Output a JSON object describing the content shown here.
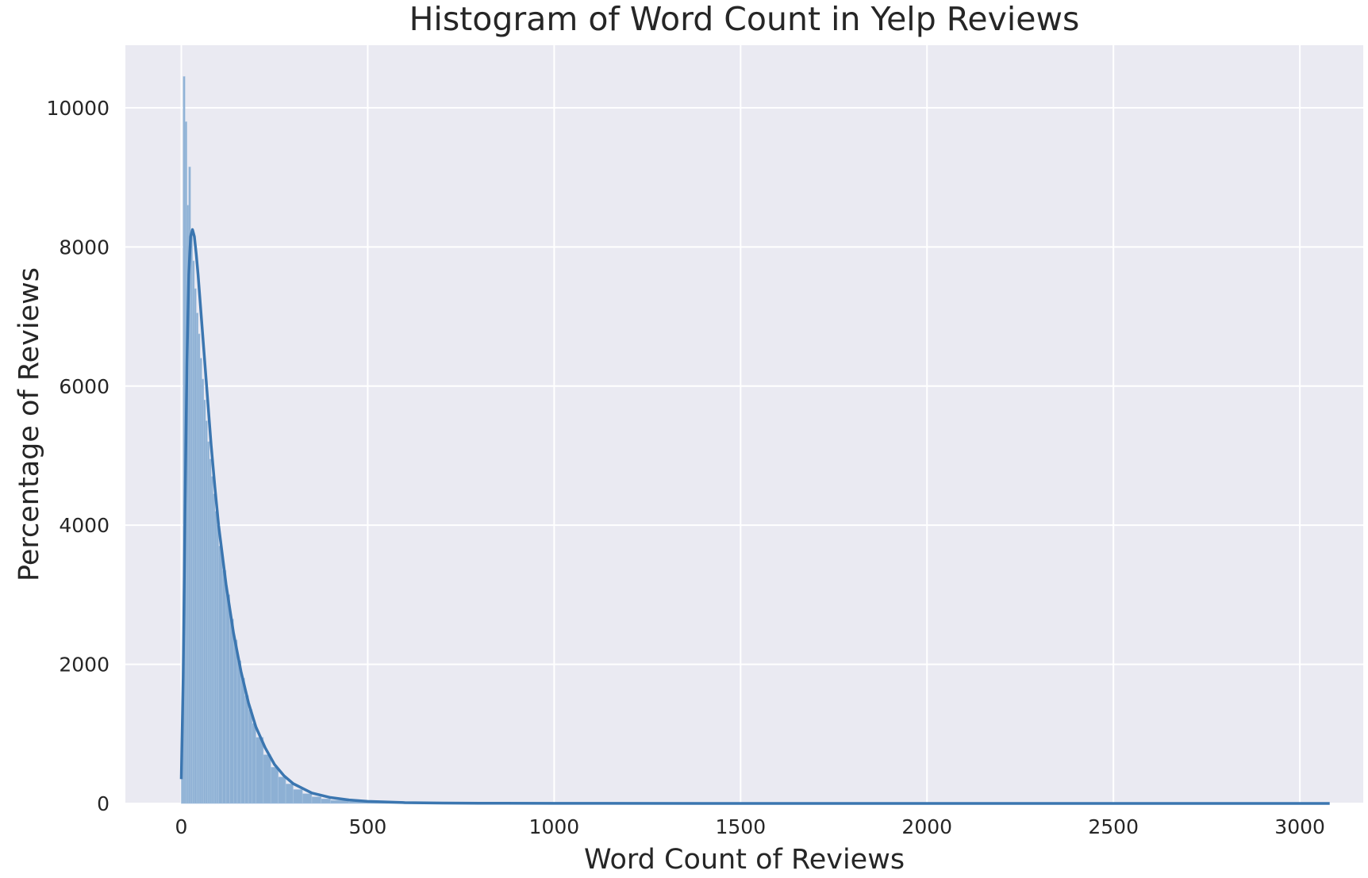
{
  "chart_data": {
    "type": "bar",
    "style": "histogram with KDE line",
    "title": "Histogram of Word Count in Yelp Reviews",
    "xlabel": "Word Count of Reviews",
    "ylabel": "Percentage of Reviews",
    "xlim": [
      -150,
      3170
    ],
    "ylim": [
      0,
      10900
    ],
    "xticks": [
      "0",
      "500",
      "1000",
      "1500",
      "2000",
      "2500",
      "3000"
    ],
    "yticks": [
      "0",
      "2000",
      "4000",
      "6000",
      "8000",
      "10000"
    ],
    "xtick_values": [
      0,
      500,
      1000,
      1500,
      2000,
      2500,
      3000
    ],
    "ytick_values": [
      0,
      2000,
      4000,
      6000,
      8000,
      10000
    ],
    "grid": true,
    "legend": "none",
    "colors": {
      "plot_background": "#eaeaf2",
      "grid": "#ffffff",
      "bar_fill": "#8db0d4",
      "bar_edge": "#a9c4e0",
      "kde_line": "#3b76b0"
    },
    "histogram": {
      "bin_width": 5,
      "bin_starts": [
        0,
        5,
        10,
        15,
        20,
        25,
        30,
        35,
        40,
        45,
        50,
        55,
        60,
        65,
        70,
        75,
        80,
        85,
        90,
        95,
        100,
        110,
        120,
        130,
        140,
        150,
        160,
        170,
        180,
        190,
        200,
        220,
        240,
        260,
        280,
        300,
        325,
        350,
        375,
        400,
        450,
        500,
        550,
        600,
        700,
        800,
        900,
        1000,
        1200,
        1500,
        2000,
        2500,
        3000
      ],
      "counts": [
        700,
        10450,
        9800,
        8600,
        9150,
        8200,
        7800,
        7400,
        7050,
        6750,
        6400,
        6100,
        5800,
        5500,
        5200,
        4950,
        4700,
        4450,
        4200,
        4000,
        3700,
        3350,
        3000,
        2650,
        2350,
        2050,
        1800,
        1550,
        1350,
        1150,
        950,
        700,
        520,
        380,
        280,
        200,
        140,
        95,
        65,
        45,
        28,
        18,
        12,
        8,
        5,
        3,
        2,
        1,
        1,
        0,
        0,
        0,
        0
      ]
    },
    "kde": {
      "x": [
        0,
        5,
        10,
        15,
        20,
        25,
        30,
        35,
        40,
        45,
        50,
        60,
        70,
        80,
        90,
        100,
        120,
        140,
        160,
        180,
        200,
        225,
        250,
        275,
        300,
        350,
        400,
        450,
        500,
        600,
        700,
        800,
        1000,
        1500,
        2000,
        2500,
        3000,
        3080
      ],
      "y": [
        350,
        1800,
        4200,
        6300,
        7600,
        8150,
        8250,
        8150,
        7900,
        7600,
        7250,
        6550,
        5850,
        5150,
        4550,
        4000,
        3150,
        2450,
        1900,
        1450,
        1100,
        800,
        560,
        400,
        285,
        150,
        85,
        50,
        30,
        12,
        6,
        3,
        1,
        0,
        0,
        0,
        0,
        0
      ]
    }
  }
}
